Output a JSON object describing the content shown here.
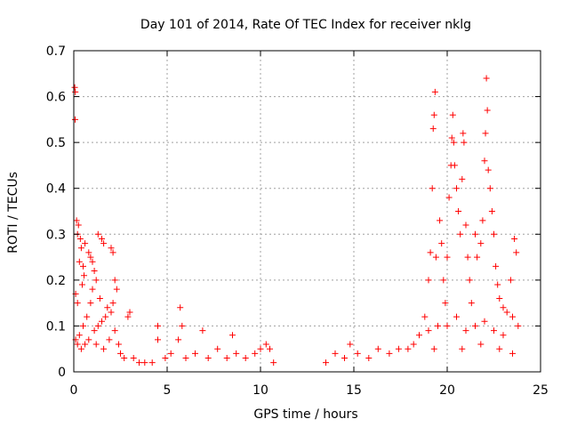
{
  "chart_data": {
    "type": "scatter",
    "title": "Day 101 of 2014, Rate Of TEC Index for receiver nklg",
    "xlabel": "GPS time / hours",
    "ylabel": "ROTI / TECUs",
    "xlim": [
      0,
      25
    ],
    "ylim": [
      0,
      0.7
    ],
    "xticks": [
      0,
      5,
      10,
      15,
      20,
      25
    ],
    "yticks": [
      0,
      0.1,
      0.2,
      0.3,
      0.4,
      0.5,
      0.6,
      0.7
    ],
    "xtick_labels": [
      "0",
      "5",
      "10",
      "15",
      "20",
      "25"
    ],
    "ytick_labels": [
      "0",
      "0.1",
      "0.2",
      "0.3",
      "0.4",
      "0.5",
      "0.6",
      "0.7"
    ],
    "grid": true,
    "marker": "+",
    "color": "#ff0000",
    "series": [
      {
        "name": "ROTI",
        "points": [
          [
            0.05,
            0.62
          ],
          [
            0.08,
            0.61
          ],
          [
            0.07,
            0.55
          ],
          [
            0.15,
            0.33
          ],
          [
            0.25,
            0.32
          ],
          [
            0.2,
            0.3
          ],
          [
            0.35,
            0.29
          ],
          [
            0.4,
            0.27
          ],
          [
            0.3,
            0.24
          ],
          [
            0.5,
            0.23
          ],
          [
            0.55,
            0.21
          ],
          [
            0.45,
            0.19
          ],
          [
            0.1,
            0.17
          ],
          [
            0.2,
            0.15
          ],
          [
            0.6,
            0.28
          ],
          [
            0.8,
            0.26
          ],
          [
            0.9,
            0.25
          ],
          [
            1.0,
            0.24
          ],
          [
            1.1,
            0.22
          ],
          [
            1.3,
            0.3
          ],
          [
            1.5,
            0.29
          ],
          [
            1.6,
            0.28
          ],
          [
            1.2,
            0.2
          ],
          [
            1.0,
            0.18
          ],
          [
            0.9,
            0.15
          ],
          [
            1.4,
            0.16
          ],
          [
            1.8,
            0.14
          ],
          [
            2.0,
            0.27
          ],
          [
            2.1,
            0.26
          ],
          [
            2.2,
            0.2
          ],
          [
            2.3,
            0.18
          ],
          [
            2.1,
            0.15
          ],
          [
            2.0,
            0.13
          ],
          [
            1.7,
            0.12
          ],
          [
            1.5,
            0.11
          ],
          [
            1.3,
            0.1
          ],
          [
            1.1,
            0.09
          ],
          [
            0.7,
            0.12
          ],
          [
            0.5,
            0.1
          ],
          [
            0.3,
            0.08
          ],
          [
            0.1,
            0.07
          ],
          [
            0.2,
            0.06
          ],
          [
            0.4,
            0.05
          ],
          [
            0.6,
            0.06
          ],
          [
            0.8,
            0.07
          ],
          [
            1.2,
            0.06
          ],
          [
            1.6,
            0.05
          ],
          [
            1.9,
            0.07
          ],
          [
            2.2,
            0.09
          ],
          [
            2.4,
            0.06
          ],
          [
            2.5,
            0.04
          ],
          [
            2.7,
            0.03
          ],
          [
            2.9,
            0.12
          ],
          [
            3.0,
            0.13
          ],
          [
            3.2,
            0.03
          ],
          [
            3.5,
            0.02
          ],
          [
            3.8,
            0.02
          ],
          [
            4.2,
            0.02
          ],
          [
            4.5,
            0.1
          ],
          [
            4.5,
            0.07
          ],
          [
            4.9,
            0.03
          ],
          [
            5.2,
            0.04
          ],
          [
            5.6,
            0.07
          ],
          [
            5.7,
            0.14
          ],
          [
            5.8,
            0.1
          ],
          [
            6.0,
            0.03
          ],
          [
            6.5,
            0.04
          ],
          [
            6.9,
            0.09
          ],
          [
            7.2,
            0.03
          ],
          [
            7.7,
            0.05
          ],
          [
            8.2,
            0.03
          ],
          [
            8.5,
            0.08
          ],
          [
            8.7,
            0.04
          ],
          [
            9.2,
            0.03
          ],
          [
            9.7,
            0.04
          ],
          [
            10.0,
            0.05
          ],
          [
            10.3,
            0.06
          ],
          [
            10.5,
            0.05
          ],
          [
            10.7,
            0.02
          ],
          [
            13.5,
            0.02
          ],
          [
            14.0,
            0.04
          ],
          [
            14.5,
            0.03
          ],
          [
            14.8,
            0.06
          ],
          [
            15.2,
            0.04
          ],
          [
            15.8,
            0.03
          ],
          [
            16.3,
            0.05
          ],
          [
            16.9,
            0.04
          ],
          [
            17.4,
            0.05
          ],
          [
            17.9,
            0.05
          ],
          [
            18.2,
            0.06
          ],
          [
            18.5,
            0.08
          ],
          [
            18.8,
            0.12
          ],
          [
            19.0,
            0.2
          ],
          [
            19.1,
            0.26
          ],
          [
            19.2,
            0.4
          ],
          [
            19.25,
            0.53
          ],
          [
            19.3,
            0.56
          ],
          [
            19.35,
            0.61
          ],
          [
            19.4,
            0.25
          ],
          [
            19.6,
            0.33
          ],
          [
            19.7,
            0.28
          ],
          [
            19.8,
            0.2
          ],
          [
            19.9,
            0.15
          ],
          [
            20.0,
            0.25
          ],
          [
            20.1,
            0.38
          ],
          [
            20.2,
            0.45
          ],
          [
            20.25,
            0.51
          ],
          [
            20.3,
            0.56
          ],
          [
            20.35,
            0.5
          ],
          [
            20.4,
            0.45
          ],
          [
            20.5,
            0.4
          ],
          [
            20.6,
            0.35
          ],
          [
            20.7,
            0.3
          ],
          [
            20.8,
            0.42
          ],
          [
            20.85,
            0.52
          ],
          [
            20.9,
            0.5
          ],
          [
            21.0,
            0.32
          ],
          [
            21.1,
            0.25
          ],
          [
            21.2,
            0.2
          ],
          [
            21.3,
            0.15
          ],
          [
            21.5,
            0.3
          ],
          [
            21.6,
            0.25
          ],
          [
            21.8,
            0.28
          ],
          [
            21.9,
            0.33
          ],
          [
            22.0,
            0.46
          ],
          [
            22.05,
            0.52
          ],
          [
            22.1,
            0.64
          ],
          [
            22.15,
            0.57
          ],
          [
            22.2,
            0.44
          ],
          [
            22.3,
            0.4
          ],
          [
            22.4,
            0.35
          ],
          [
            22.5,
            0.3
          ],
          [
            22.6,
            0.23
          ],
          [
            22.7,
            0.19
          ],
          [
            22.8,
            0.16
          ],
          [
            23.0,
            0.14
          ],
          [
            23.2,
            0.13
          ],
          [
            23.4,
            0.2
          ],
          [
            23.5,
            0.12
          ],
          [
            23.6,
            0.29
          ],
          [
            23.7,
            0.26
          ],
          [
            23.8,
            0.1
          ],
          [
            19.0,
            0.09
          ],
          [
            19.5,
            0.1
          ],
          [
            20.0,
            0.1
          ],
          [
            20.5,
            0.12
          ],
          [
            21.0,
            0.09
          ],
          [
            21.5,
            0.1
          ],
          [
            22.0,
            0.11
          ],
          [
            22.5,
            0.09
          ],
          [
            23.0,
            0.08
          ],
          [
            19.3,
            0.05
          ],
          [
            20.8,
            0.05
          ],
          [
            21.8,
            0.06
          ],
          [
            22.8,
            0.05
          ],
          [
            23.5,
            0.04
          ]
        ]
      }
    ]
  }
}
